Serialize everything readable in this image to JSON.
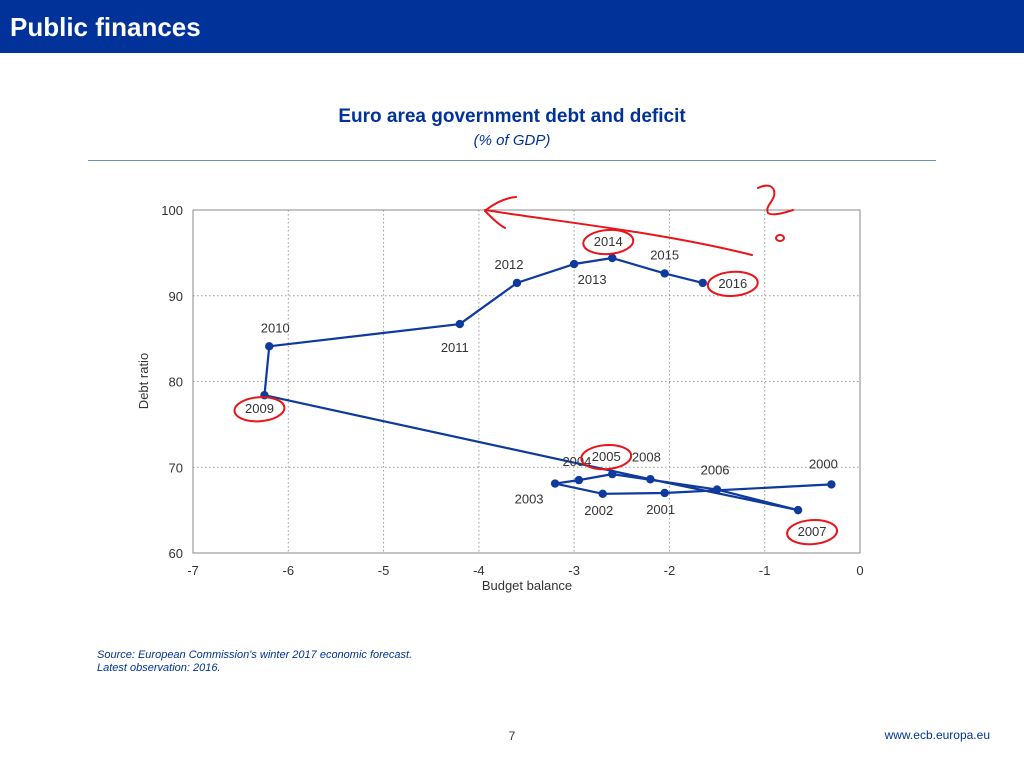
{
  "header": {
    "title": "Public finances"
  },
  "chart_data": {
    "type": "scatter",
    "title": "Euro area government debt and deficit",
    "subtitle": "(% of GDP)",
    "xlabel": "Budget balance",
    "ylabel": "Debt ratio",
    "xlim": [
      -7,
      0
    ],
    "ylim": [
      60,
      100
    ],
    "x_ticks": [
      "-7",
      "-6",
      "-5",
      "-4",
      "-3",
      "-2",
      "-1",
      "0"
    ],
    "y_ticks": [
      "60",
      "70",
      "80",
      "90",
      "100"
    ],
    "grid": true,
    "connected": true,
    "series_color": "#0d3a9c",
    "points": [
      {
        "year": "2000",
        "x": -0.3,
        "y": 68.0
      },
      {
        "year": "2001",
        "x": -2.05,
        "y": 67.0
      },
      {
        "year": "2002",
        "x": -2.7,
        "y": 66.9
      },
      {
        "year": "2003",
        "x": -3.2,
        "y": 68.1
      },
      {
        "year": "2004",
        "x": -2.95,
        "y": 68.5
      },
      {
        "year": "2005",
        "x": -2.6,
        "y": 69.2
      },
      {
        "year": "2006",
        "x": -1.5,
        "y": 67.4
      },
      {
        "year": "2007",
        "x": -0.65,
        "y": 65.0
      },
      {
        "year": "2008",
        "x": -2.2,
        "y": 68.6
      },
      {
        "year": "2009",
        "x": -6.25,
        "y": 78.4
      },
      {
        "year": "2010",
        "x": -6.2,
        "y": 84.1
      },
      {
        "year": "2011",
        "x": -4.2,
        "y": 86.7
      },
      {
        "year": "2012",
        "x": -3.6,
        "y": 91.5
      },
      {
        "year": "2013",
        "x": -3.0,
        "y": 93.7
      },
      {
        "year": "2014",
        "x": -2.6,
        "y": 94.4
      },
      {
        "year": "2015",
        "x": -2.05,
        "y": 92.6
      },
      {
        "year": "2016",
        "x": -1.65,
        "y": 91.5
      }
    ],
    "annotations": {
      "color": "#e8151b",
      "circled_years": [
        "2014",
        "2016",
        "2009",
        "2005",
        "2007"
      ],
      "marks": [
        "arrow-left",
        "question-mark"
      ]
    }
  },
  "footer": {
    "source_line1": "Source: European Commission's winter 2017 economic forecast.",
    "source_line2": "Latest observation: 2016.",
    "page_number": "7",
    "website": "www.ecb.europa.eu"
  }
}
